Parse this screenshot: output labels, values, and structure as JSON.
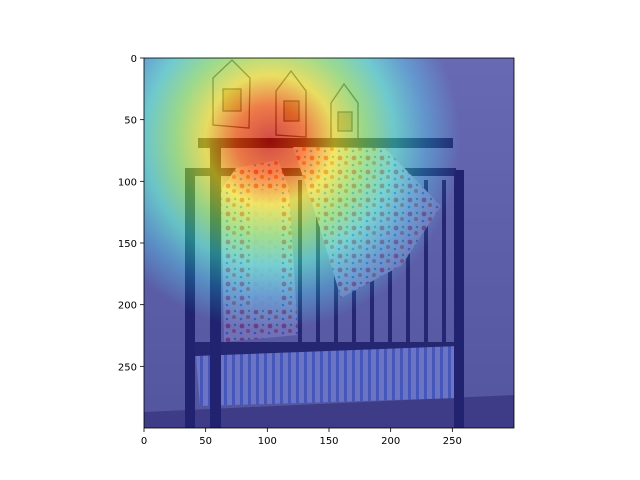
{
  "figure": {
    "image_description": "crib with floral bedding and framed pictures, heatmap overlay (jet colormap)",
    "x_axis": {
      "ticks": [
        0,
        50,
        100,
        150,
        200,
        250
      ],
      "range": [
        0,
        300
      ]
    },
    "y_axis": {
      "ticks": [
        0,
        50,
        100,
        150,
        200,
        250
      ],
      "range": [
        0,
        300
      ]
    },
    "colormap": {
      "low": "#2a2ab0",
      "mid": "#37c8c8",
      "high_mid": "#f0e030",
      "peak": "#e02020"
    }
  }
}
